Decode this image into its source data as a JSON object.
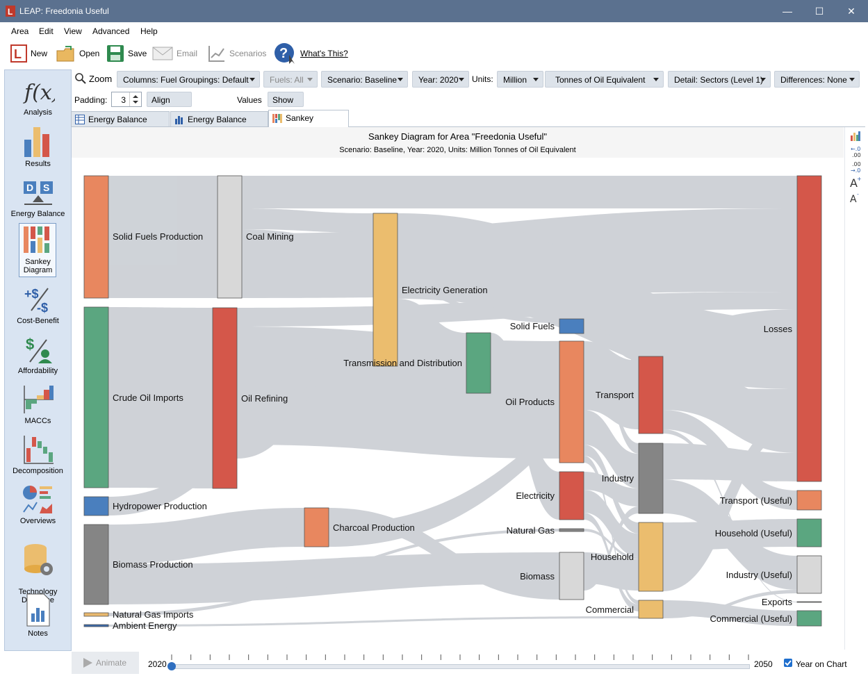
{
  "window": {
    "title": "LEAP: Freedonia Useful"
  },
  "menu": [
    "Area",
    "Edit",
    "View",
    "Advanced",
    "Help"
  ],
  "toolbar": {
    "new": "New",
    "open": "Open",
    "save": "Save",
    "email": "Email",
    "scenarios": "Scenarios",
    "whats_this": "What's This?"
  },
  "sidebar": [
    {
      "label": "Analysis",
      "icon": "function-icon"
    },
    {
      "label": "Results",
      "icon": "bar-chart-icon"
    },
    {
      "label": "Energy Balance",
      "icon": "energy-balance-icon"
    },
    {
      "label": "Sankey\nDiagram",
      "icon": "sankey-icon",
      "active": true
    },
    {
      "label": "Cost-Benefit",
      "icon": "cost-benefit-icon"
    },
    {
      "label": "Affordability",
      "icon": "affordability-icon"
    },
    {
      "label": "MACCs",
      "icon": "macc-icon"
    },
    {
      "label": "Decomposition",
      "icon": "decomposition-icon"
    },
    {
      "label": "Overviews",
      "icon": "overviews-icon"
    },
    {
      "label": "Technology\nDatabase",
      "icon": "database-icon"
    },
    {
      "label": "Notes",
      "icon": "notes-icon"
    }
  ],
  "controls": {
    "zoom": "Zoom",
    "columns": "Columns: Fuel Groupings: Default",
    "fuels": "Fuels: All",
    "scenario": "Scenario: Baseline",
    "year": "Year: 2020",
    "units_label": "Units:",
    "units_scale": "Million",
    "units_name": "Tonnes of Oil Equivalent",
    "detail": "Detail: Sectors (Level 1)",
    "differences": "Differences: None",
    "padding_label": "Padding:",
    "padding_value": "3",
    "align_final": "Align Final Demands",
    "values": "Values",
    "show_useful": "Show Useful Energy"
  },
  "tabs": [
    {
      "label": "Energy Balance Table"
    },
    {
      "label": "Energy Balance Chart"
    },
    {
      "label": "Sankey Diagram",
      "active": true
    }
  ],
  "sankey": {
    "title": "Sankey Diagram for Area \"Freedonia Useful\"",
    "subtitle": "Scenario: Baseline, Year: 2020, Units: Million Tonnes of Oil Equivalent",
    "nodes": [
      {
        "label": "Solid Fuels Production",
        "color": "#e8875f"
      },
      {
        "label": "Crude Oil Imports",
        "color": "#5ba680"
      },
      {
        "label": "Hydropower Production",
        "color": "#4a7fbe"
      },
      {
        "label": "Biomass Production",
        "color": "#858585"
      },
      {
        "label": "Natural Gas Imports",
        "color": "#e8b86d"
      },
      {
        "label": "Ambient Energy",
        "color": "#3a68a8"
      },
      {
        "label": "Coal Mining",
        "color": "#d8d8d8"
      },
      {
        "label": "Oil Refining",
        "color": "#d4574a"
      },
      {
        "label": "Charcoal Production",
        "color": "#e8875f"
      },
      {
        "label": "Electricity Generation",
        "color": "#ebbd6e"
      },
      {
        "label": "Transmission and Distribution",
        "color": "#5ba680"
      },
      {
        "label": "Solid Fuels",
        "color": "#4a7fbe"
      },
      {
        "label": "Oil Products",
        "color": "#e8875f"
      },
      {
        "label": "Electricity",
        "color": "#d4574a"
      },
      {
        "label": "Natural Gas",
        "color": "#858585"
      },
      {
        "label": "Biomass",
        "color": "#d8d8d8"
      },
      {
        "label": "Transport",
        "color": "#d4574a"
      },
      {
        "label": "Industry",
        "color": "#858585"
      },
      {
        "label": "Household",
        "color": "#ebbd6e"
      },
      {
        "label": "Commercial",
        "color": "#ebbd6e"
      },
      {
        "label": "Losses",
        "color": "#d4574a"
      },
      {
        "label": "Transport (Useful)",
        "color": "#e8875f"
      },
      {
        "label": "Household (Useful)",
        "color": "#5ba680"
      },
      {
        "label": "Industry (Useful)",
        "color": "#d8d8d8"
      },
      {
        "label": "Exports",
        "color": "#858585"
      },
      {
        "label": "Commercial (Useful)",
        "color": "#5ba680"
      }
    ]
  },
  "bottom": {
    "animate": "Animate",
    "start_year": "2020",
    "end_year": "2050",
    "year_on_chart": "Year on Chart",
    "slider_position": 0
  }
}
